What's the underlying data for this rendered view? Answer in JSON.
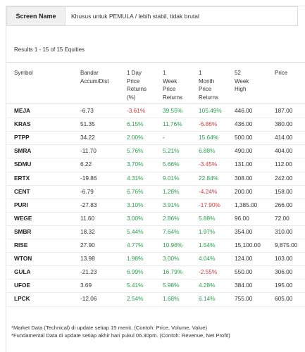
{
  "screen": {
    "label": "Screen Name",
    "value": "Khusus untuk PEMULA / lebih stabil, tidak brutal"
  },
  "results_text": "Results 1 - 15 of 15 Equities",
  "headers": [
    {
      "key": "symbol",
      "lines": [
        "Symbol"
      ]
    },
    {
      "key": "bandar",
      "lines": [
        "Bandar",
        "Accum/Dist"
      ]
    },
    {
      "key": "d1",
      "lines": [
        "1 Day",
        "Price",
        "Returns",
        "(%)"
      ]
    },
    {
      "key": "w1",
      "lines": [
        "1",
        "Week",
        "Price",
        "Returns"
      ]
    },
    {
      "key": "m1",
      "lines": [
        "1",
        "Month",
        "Price",
        "Returns"
      ]
    },
    {
      "key": "w52",
      "lines": [
        "52",
        "Week",
        "High"
      ]
    },
    {
      "key": "price",
      "lines": [
        "Price"
      ]
    }
  ],
  "rows": [
    {
      "symbol": "MEJA",
      "bandar": "-6.73",
      "d1": "-3.61%",
      "w1": "39.55%",
      "m1": "105.49%",
      "w52": "446.00",
      "price": "187.00"
    },
    {
      "symbol": "KRAS",
      "bandar": "51.35",
      "d1": "6.15%",
      "w1": "11.76%",
      "m1": "-6.86%",
      "w52": "436.00",
      "price": "380.00"
    },
    {
      "symbol": "PTPP",
      "bandar": "34.22",
      "d1": "2.00%",
      "w1": "-",
      "m1": "15.64%",
      "w52": "500.00",
      "price": "414.00"
    },
    {
      "symbol": "SMRA",
      "bandar": "-11.70",
      "d1": "5.76%",
      "w1": "5.21%",
      "m1": "6.88%",
      "w52": "490.00",
      "price": "404.00"
    },
    {
      "symbol": "SDMU",
      "bandar": "6.22",
      "d1": "3.70%",
      "w1": "5.66%",
      "m1": "-3.45%",
      "w52": "131.00",
      "price": "112.00"
    },
    {
      "symbol": "ERTX",
      "bandar": "-19.86",
      "d1": "4.31%",
      "w1": "9.01%",
      "m1": "22.84%",
      "w52": "308.00",
      "price": "242.00"
    },
    {
      "symbol": "CENT",
      "bandar": "-6.79",
      "d1": "6.76%",
      "w1": "1.28%",
      "m1": "-4.24%",
      "w52": "200.00",
      "price": "158.00"
    },
    {
      "symbol": "PURI",
      "bandar": "-27.83",
      "d1": "3.10%",
      "w1": "3.91%",
      "m1": "-17.90%",
      "w52": "1,385.00",
      "price": "266.00"
    },
    {
      "symbol": "WEGE",
      "bandar": "11.60",
      "d1": "3.00%",
      "w1": "2.86%",
      "m1": "5.88%",
      "w52": "96.00",
      "price": "72.00"
    },
    {
      "symbol": "SMBR",
      "bandar": "18.32",
      "d1": "5.44%",
      "w1": "7.64%",
      "m1": "1.97%",
      "w52": "354.00",
      "price": "310.00"
    },
    {
      "symbol": "RISE",
      "bandar": "27.90",
      "d1": "4.77%",
      "w1": "10.96%",
      "m1": "1.54%",
      "w52": "15,100.00",
      "price": "9,875.00"
    },
    {
      "symbol": "WTON",
      "bandar": "13.98",
      "d1": "1.98%",
      "w1": "3.00%",
      "m1": "4.04%",
      "w52": "124.00",
      "price": "103.00"
    },
    {
      "symbol": "GULA",
      "bandar": "-21.23",
      "d1": "6.99%",
      "w1": "16.79%",
      "m1": "-2.55%",
      "w52": "550.00",
      "price": "306.00"
    },
    {
      "symbol": "UFOE",
      "bandar": "3.69",
      "d1": "5.41%",
      "w1": "5.98%",
      "m1": "4.28%",
      "w52": "384.00",
      "price": "195.00"
    },
    {
      "symbol": "LPCK",
      "bandar": "-12.06",
      "d1": "2.54%",
      "w1": "1.68%",
      "m1": "6.14%",
      "w52": "755.00",
      "price": "605.00"
    }
  ],
  "footnotes": [
    "*Market Data (Technical) di update setiap 15 menit. (Contoh: Price, Volume, Value)",
    "*Fundamental Data di update setiap akhir hari pukul 06.30pm. (Contoh: Revenue, Net Profit)"
  ],
  "colors": {
    "positive": "#2aa14e",
    "negative": "#e0383e"
  }
}
